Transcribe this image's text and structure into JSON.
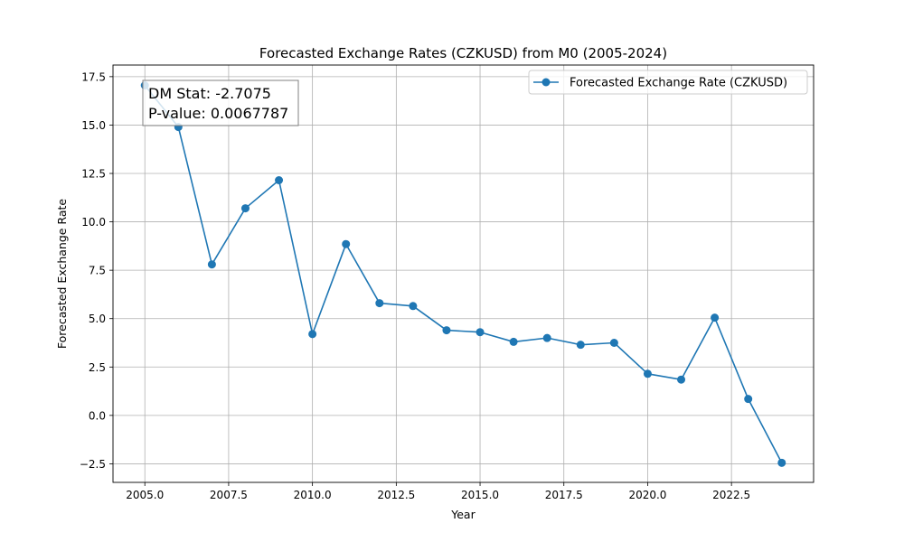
{
  "colors": {
    "series": "#1f77b4",
    "grid": "#b0b0b0",
    "axes": "#000000",
    "background": "#ffffff",
    "annotation_border": "#808080"
  },
  "chart_data": {
    "type": "line",
    "title": "Forecasted Exchange Rates (CZKUSD) from M0 (2005-2024)",
    "xlabel": "Year",
    "ylabel": "Forecasted Exchange Rate",
    "xlim": [
      2004.05,
      2024.95
    ],
    "ylim": [
      -3.46,
      18.1
    ],
    "grid": true,
    "legend_position": "upper right",
    "x_ticks": [
      2005.0,
      2007.5,
      2010.0,
      2012.5,
      2015.0,
      2017.5,
      2020.0,
      2022.5
    ],
    "x_tick_labels": [
      "2005.0",
      "2007.5",
      "2010.0",
      "2012.5",
      "2015.0",
      "2017.5",
      "2020.0",
      "2022.5"
    ],
    "y_ticks": [
      -2.5,
      0.0,
      2.5,
      5.0,
      7.5,
      10.0,
      12.5,
      15.0,
      17.5
    ],
    "y_tick_labels": [
      "−2.5",
      "0.0",
      "2.5",
      "5.0",
      "7.5",
      "10.0",
      "12.5",
      "15.0",
      "17.5"
    ],
    "series": [
      {
        "name": "Forecasted Exchange Rate (CZKUSD)",
        "marker": "circle",
        "x": [
          2005,
          2006,
          2007,
          2008,
          2009,
          2010,
          2011,
          2012,
          2013,
          2014,
          2015,
          2016,
          2017,
          2018,
          2019,
          2020,
          2021,
          2022,
          2023,
          2024
        ],
        "values": [
          17.05,
          14.9,
          7.8,
          10.7,
          12.15,
          4.2,
          8.85,
          5.8,
          5.65,
          4.4,
          4.3,
          3.8,
          4.0,
          3.65,
          3.75,
          2.15,
          1.85,
          5.05,
          0.85,
          -2.45
        ]
      }
    ],
    "annotation": {
      "line1": "DM Stat: -2.7075",
      "line2": "P-value: 0.0067787"
    }
  }
}
